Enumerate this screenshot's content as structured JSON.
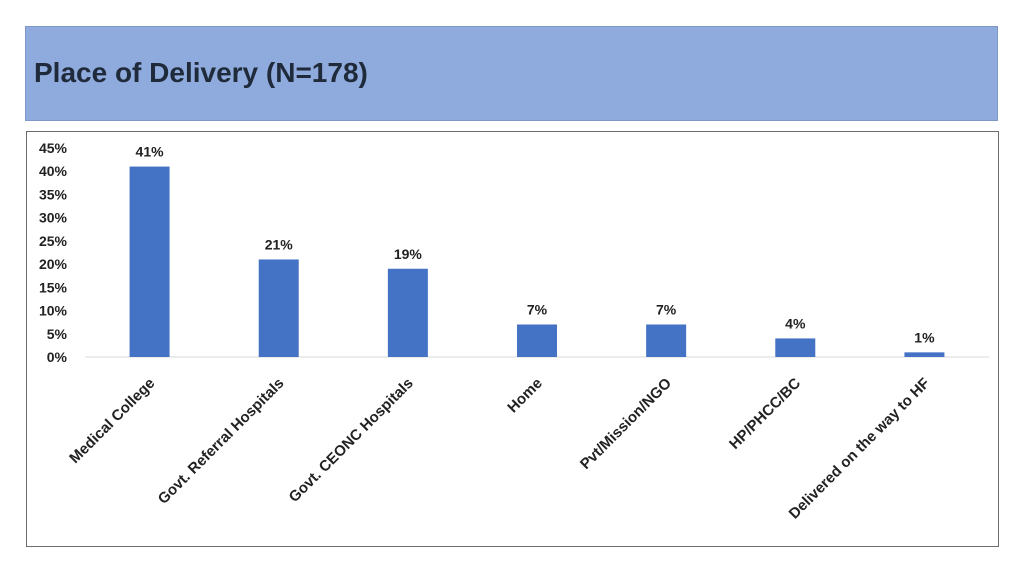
{
  "title": "Place of Delivery (N=178)",
  "colors": {
    "bar": "#4472c4",
    "header_bg": "#8faadc",
    "axis": "#d9d9d9"
  },
  "chart_data": {
    "type": "bar",
    "title": "Place of Delivery (N=178)",
    "categories": [
      "Medical College",
      "Govt. Referral Hospitals",
      "Govt. CEONC Hospitals",
      "Home",
      "Pvt/Mission/NGO",
      "HP/PHCC/BC",
      "Delivered on the way to HF"
    ],
    "values": [
      41,
      21,
      19,
      7,
      7,
      4,
      1
    ],
    "data_labels": [
      "41%",
      "21%",
      "19%",
      "7%",
      "7%",
      "4%",
      "1%"
    ],
    "ylim": [
      0,
      45
    ],
    "yticks": [
      0,
      5,
      10,
      15,
      20,
      25,
      30,
      35,
      40,
      45
    ],
    "ytick_labels": [
      "0%",
      "5%",
      "10%",
      "15%",
      "20%",
      "25%",
      "30%",
      "35%",
      "40%",
      "45%"
    ],
    "xlabel": "",
    "ylabel": "",
    "grid": false,
    "legend": "none"
  }
}
